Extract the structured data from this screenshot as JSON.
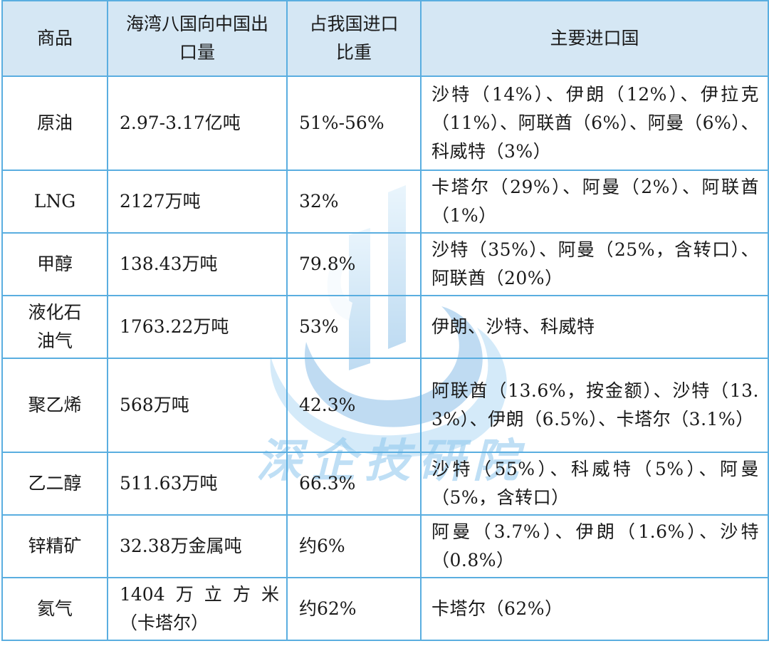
{
  "headers": [
    "商品",
    "海湾八国向中国出口量",
    "占我国进口比重",
    "主要进口国"
  ],
  "rows": [
    {
      "product": "原油",
      "volume": "2.97-3.17亿吨",
      "share": "51%-56%",
      "countries": "沙特（14%）、伊朗（12%）、伊拉克（11%）、阿联酋（6%）、阿曼（6%）、科威特（3%）"
    },
    {
      "product": "LNG",
      "volume": "2127万吨",
      "share": "32%",
      "countries": "卡塔尔（29%）、阿曼（2%）、阿联酋（1%）"
    },
    {
      "product": "甲醇",
      "volume": "138.43万吨",
      "share": "79.8%",
      "countries": "沙特（35%）、阿曼（25%，含转口）、阿联酋（20%）"
    },
    {
      "product": "液化石油气",
      "volume": "1763.22万吨",
      "share": "53%",
      "countries": "伊朗、沙特、科威特"
    },
    {
      "product": "聚乙烯",
      "volume": "568万吨",
      "share": "42.3%",
      "countries": "阿联酋（13.6%，按金额）、沙特（13.3%）、伊朗（6.5%）、卡塔尔（3.1%）"
    },
    {
      "product": "乙二醇",
      "volume": "511.63万吨",
      "share": "66.3%",
      "countries": "沙特（55%）、科威特（5%）、阿曼（5%，含转口）"
    },
    {
      "product": "锌精矿",
      "volume": "32.38万金属吨",
      "share": "约6%",
      "countries": "阿曼（3.7%）、伊朗（1.6%）、沙特（0.8%）"
    },
    {
      "product": "氦气",
      "volume_line1": "1404万立方米",
      "volume_line2": "（卡塔尔）",
      "share": "约62%",
      "countries": "卡塔尔（62%）"
    }
  ],
  "watermark": "深企技研院",
  "colors": {
    "border": "#5aaee0",
    "header_bg": "#d5e7f4",
    "watermark": "#8cc6ee"
  }
}
